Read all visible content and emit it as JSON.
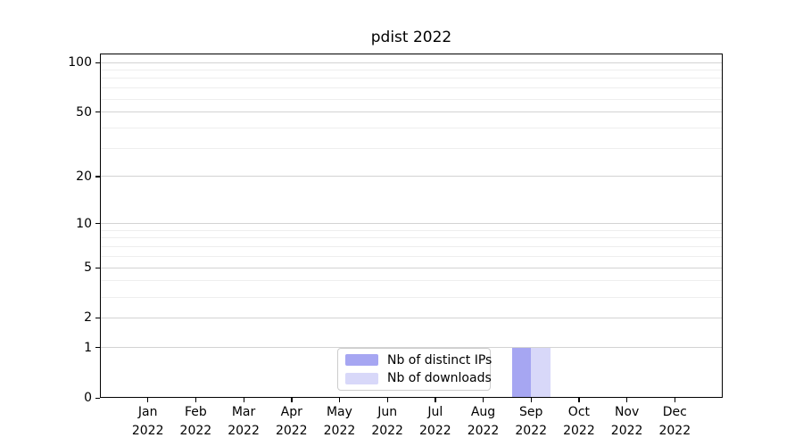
{
  "chart_data": {
    "type": "bar",
    "title": "pdist 2022",
    "categories": [
      "Jan",
      "Feb",
      "Mar",
      "Apr",
      "May",
      "Jun",
      "Jul",
      "Aug",
      "Sep",
      "Oct",
      "Nov",
      "Dec"
    ],
    "category_year": "2022",
    "series": [
      {
        "name": "Nb of distinct IPs",
        "color": "#a6a6f2",
        "values": [
          0,
          0,
          0,
          0,
          0,
          0,
          0,
          0,
          1,
          0,
          0,
          0
        ]
      },
      {
        "name": "Nb of downloads",
        "color": "#d8d8f9",
        "values": [
          0,
          0,
          0,
          0,
          0,
          0,
          0,
          0,
          1,
          0,
          0,
          0
        ]
      }
    ],
    "xlabel": "",
    "ylabel": "",
    "yscale": "log1p",
    "ylim": [
      0,
      113
    ],
    "y_major_ticks": [
      0,
      1,
      2,
      5,
      10,
      20,
      50,
      100
    ],
    "y_minor_ticks": [
      3,
      4,
      6,
      7,
      8,
      9,
      30,
      40,
      60,
      70,
      80,
      90
    ],
    "grid": true,
    "legend_position": "lower center inside axes"
  },
  "style": {
    "grid_major_color": "#d3d3d3",
    "grid_minor_color": "#eeeeee",
    "spine_color": "#000000",
    "legend_border_color": "#cccccc",
    "background_color": "#ffffff"
  }
}
